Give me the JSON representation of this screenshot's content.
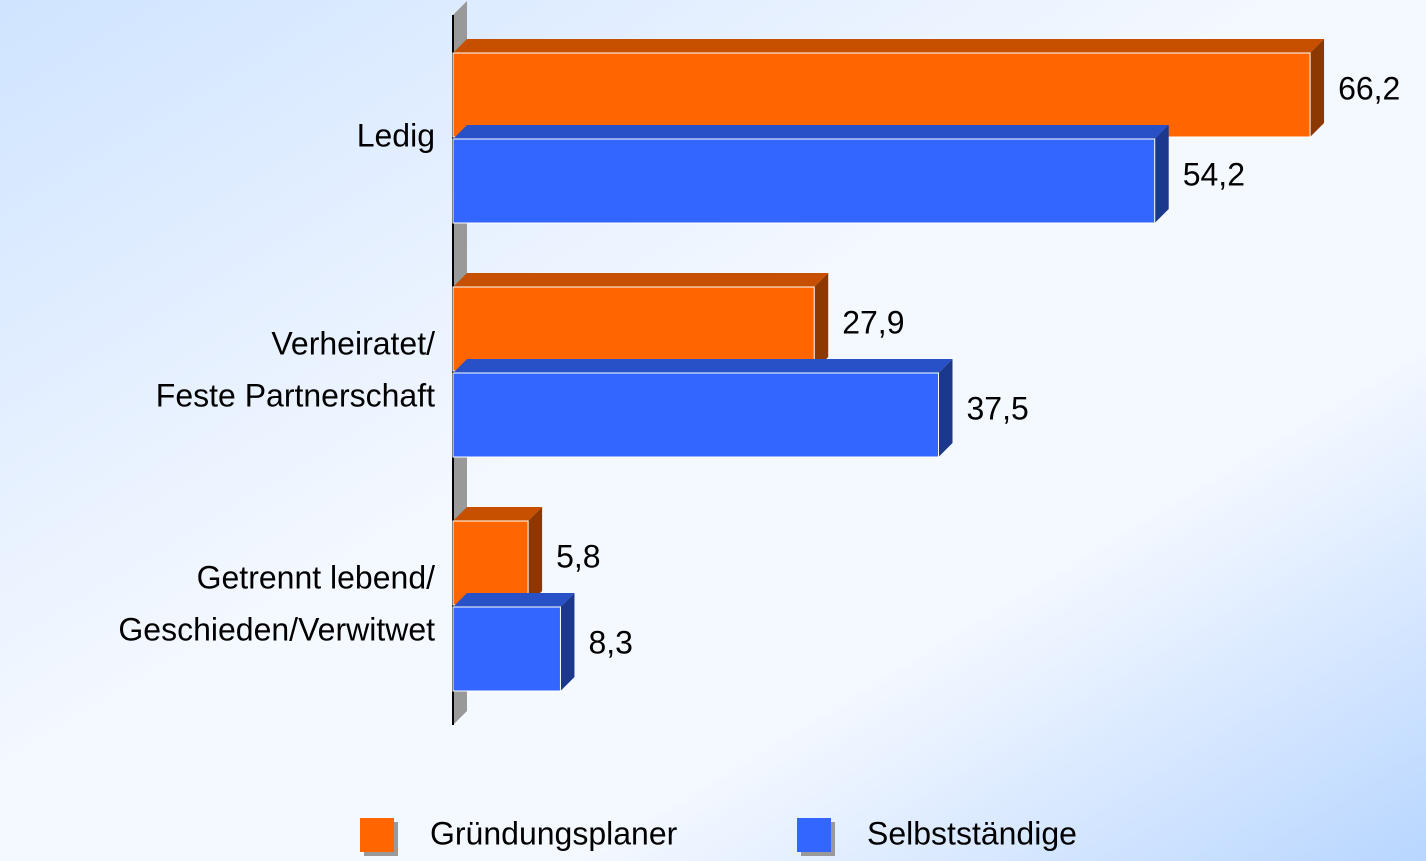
{
  "chart_data": {
    "type": "bar",
    "orientation": "horizontal",
    "categories": [
      [
        "Ledig"
      ],
      [
        "Verheiratet/",
        "Feste Partnerschaft"
      ],
      [
        "Getrennt lebend/",
        "Geschieden/Verwitwet"
      ]
    ],
    "series": [
      {
        "name": "Gründungsplaner",
        "color": "#ff6600",
        "values": [
          66.2,
          27.9,
          5.8
        ],
        "value_labels": [
          "66,2",
          "27,9",
          "5,8"
        ]
      },
      {
        "name": "Selbstständige",
        "color": "#3366ff",
        "values": [
          54.2,
          37.5,
          8.3
        ],
        "value_labels": [
          "54,2",
          "37,5",
          "8,3"
        ]
      }
    ],
    "xlim": [
      0,
      75
    ],
    "legend": "bottom"
  }
}
